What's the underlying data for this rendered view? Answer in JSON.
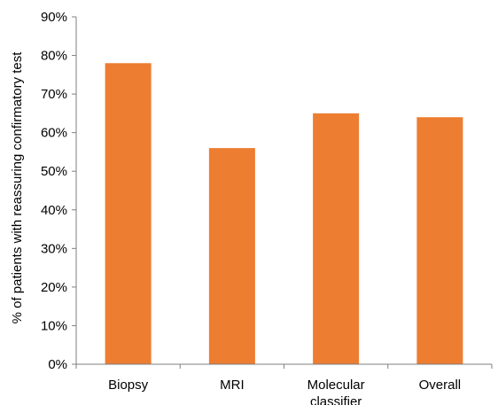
{
  "chart_data": {
    "type": "bar",
    "title": "",
    "xlabel": "",
    "ylabel": "% of patients with reassuring confirmatory test",
    "categories": [
      [
        "Biopsy"
      ],
      [
        "MRI"
      ],
      [
        "Molecular",
        "classifier"
      ],
      [
        "Overall"
      ]
    ],
    "values": [
      78,
      56,
      65,
      64
    ],
    "ylim": [
      0,
      90
    ],
    "yticks": [
      0,
      10,
      20,
      30,
      40,
      50,
      60,
      70,
      80,
      90
    ],
    "ytick_labels": [
      "0%",
      "10%",
      "20%",
      "30%",
      "40%",
      "50%",
      "60%",
      "70%",
      "80%",
      "90%"
    ],
    "grid": false,
    "legend": "none",
    "colors": {
      "bar": "#ED7D31",
      "axis": "#7F7F7F",
      "text": "#000000"
    }
  }
}
